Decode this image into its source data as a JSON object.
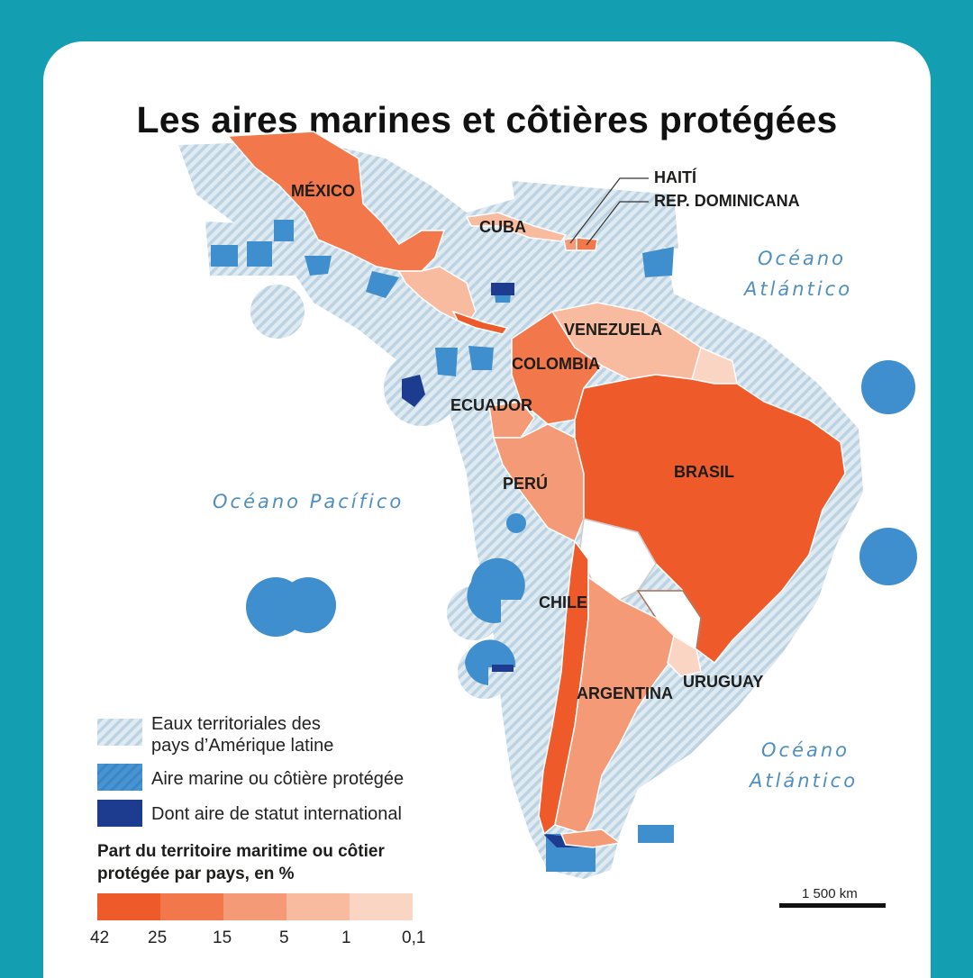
{
  "title": "Les aires marines et côtières protégées",
  "countries": {
    "mexico": "MÉXICO",
    "cuba": "CUBA",
    "haiti": "HAITÍ",
    "dominicana": "REP. DOMINICANA",
    "venezuela": "VENEZUELA",
    "colombia": "COLOMBIA",
    "ecuador": "ECUADOR",
    "peru": "PERÚ",
    "brasil": "BRASIL",
    "chile": "CHILE",
    "argentina": "ARGENTINA",
    "uruguay": "URUGUAY"
  },
  "oceans": {
    "atlantic_north_1": "Océano",
    "atlantic_north_2": "Atlántico",
    "pacific": "Océano Pacífico",
    "atlantic_south_1": "Océano",
    "atlantic_south_2": "Atlántico"
  },
  "legend": {
    "territorial_1": "Eaux territoriales des",
    "territorial_2": "pays d’Amérique latine",
    "protected": "Aire marine ou côtière protégée",
    "international": "Dont aire de statut international",
    "scale_title_1": "Part du territoire maritime ou côtier",
    "scale_title_2": "protégée par pays, en %",
    "ticks": [
      "42",
      "25",
      "15",
      "5",
      "1",
      "0,1"
    ]
  },
  "scale_bar": "1 500 km",
  "colors": {
    "frame": "#139fb1",
    "territorial": "#c9dde9",
    "protected": "#3f8fcf",
    "international": "#1d3c8f",
    "class_42": "#ef5a2a",
    "class_25": "#f2774a",
    "class_15": "#f49a76",
    "class_5": "#f8bba0",
    "class_1": "#fbd5c3"
  }
}
